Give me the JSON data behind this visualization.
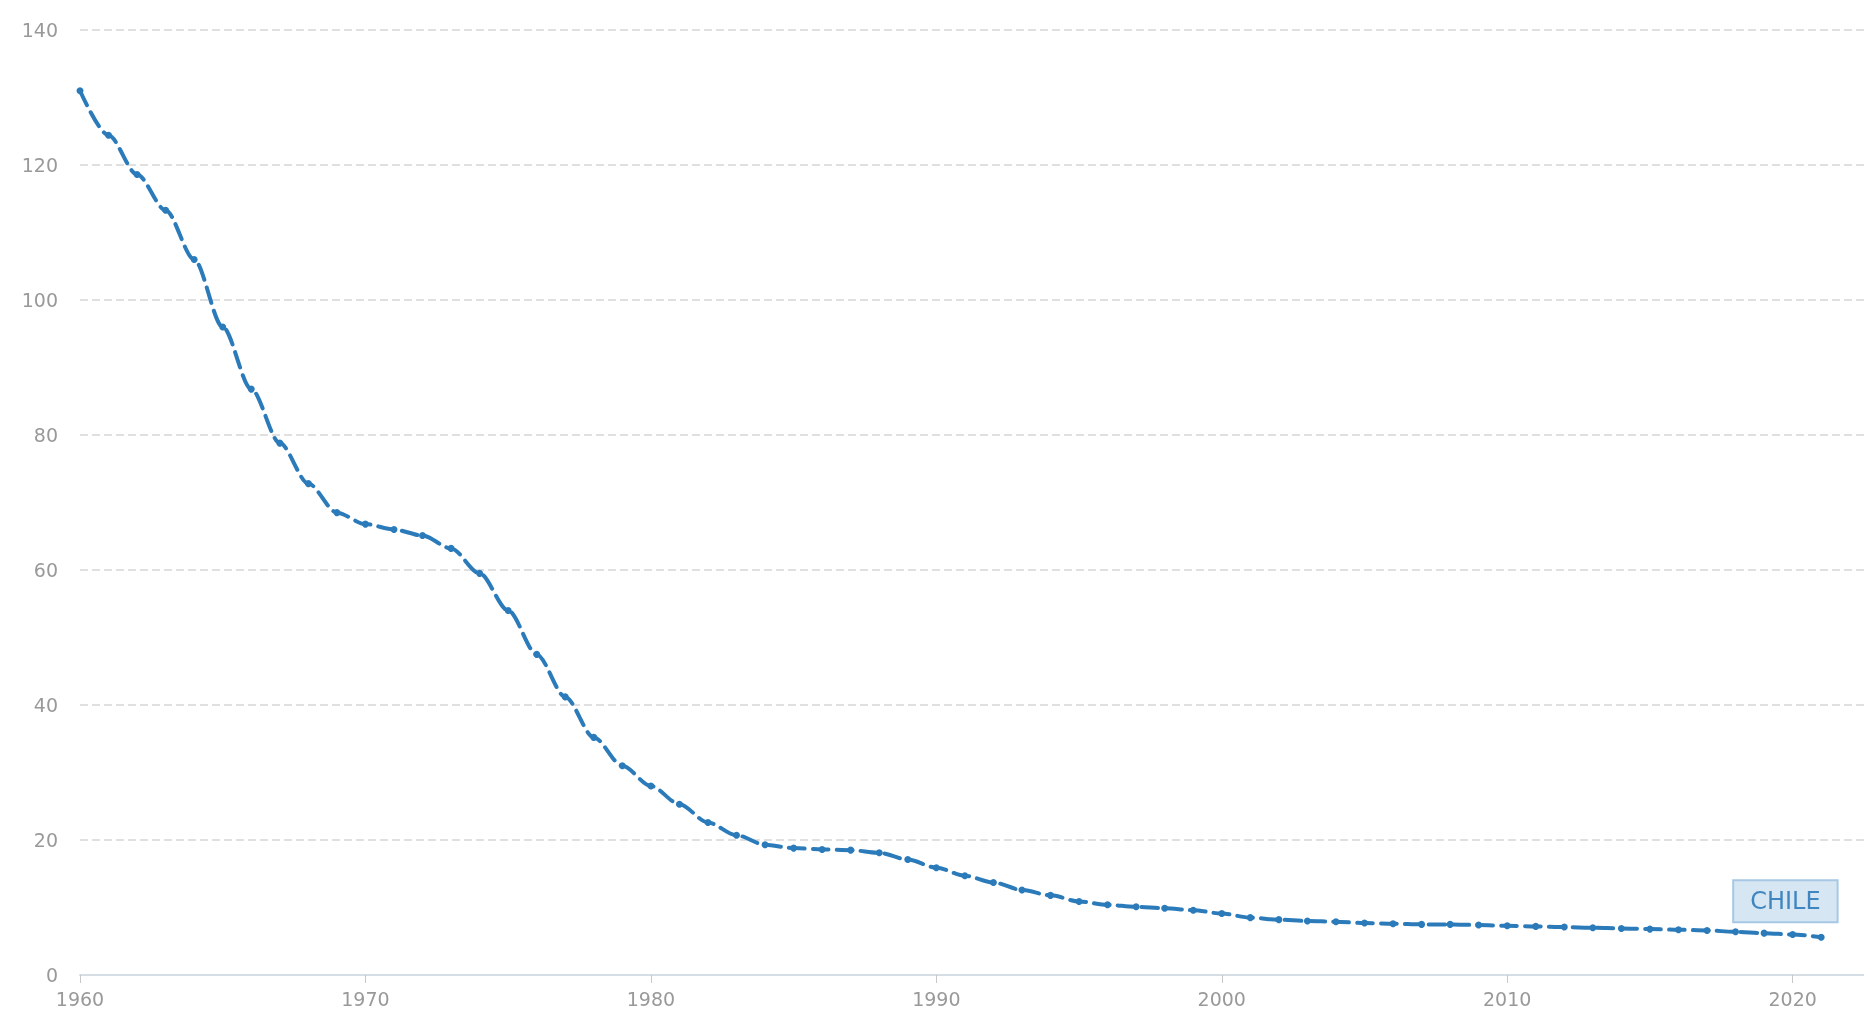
{
  "chart_data": {
    "type": "line",
    "x": [
      1960,
      1961,
      1962,
      1963,
      1964,
      1965,
      1966,
      1967,
      1968,
      1969,
      1970,
      1971,
      1972,
      1973,
      1974,
      1975,
      1976,
      1977,
      1978,
      1979,
      1980,
      1981,
      1982,
      1983,
      1984,
      1985,
      1986,
      1987,
      1988,
      1989,
      1990,
      1991,
      1992,
      1993,
      1994,
      1995,
      1996,
      1997,
      1998,
      1999,
      2000,
      2001,
      2002,
      2003,
      2004,
      2005,
      2006,
      2007,
      2008,
      2009,
      2010,
      2011,
      2012,
      2013,
      2014,
      2015,
      2016,
      2017,
      2018,
      2019,
      2020,
      2021
    ],
    "series": [
      {
        "name": "CHILE",
        "color": "#2b7bba",
        "values": [
          131,
          124.4,
          118.6,
          113.3,
          106,
          96,
          86.8,
          78.8,
          72.8,
          68.5,
          66.8,
          66,
          65.1,
          63.2,
          59.5,
          54,
          47.5,
          41.2,
          35.2,
          31,
          28,
          25.3,
          22.6,
          20.7,
          19.3,
          18.8,
          18.6,
          18.5,
          18.1,
          17.1,
          15.9,
          14.7,
          13.7,
          12.6,
          11.8,
          10.9,
          10.4,
          10.1,
          9.9,
          9.6,
          9.1,
          8.5,
          8.2,
          8,
          7.9,
          7.7,
          7.6,
          7.5,
          7.5,
          7.4,
          7.3,
          7.2,
          7.1,
          7,
          6.9,
          6.8,
          6.7,
          6.6,
          6.4,
          6.2,
          6,
          5.6
        ]
      }
    ],
    "xlim": [
      1960,
      2022.5
    ],
    "xticks": [
      1960,
      1970,
      1980,
      1990,
      2000,
      2010,
      2020
    ],
    "ylim": [
      0,
      140
    ],
    "yticks": [
      0,
      20,
      40,
      60,
      80,
      100,
      120,
      140
    ],
    "grid": "y",
    "marker": "circle",
    "line_style": "dashed"
  }
}
